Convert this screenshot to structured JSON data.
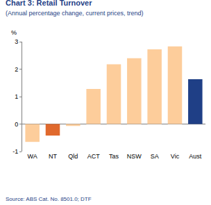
{
  "chart_data": {
    "type": "bar",
    "title": "Chart 3: Retail Turnover",
    "subtitle": "(Annual percentage change, current prices, trend)",
    "ylabel": "%",
    "source": "Source: ABS Cat. No. 8501.0; DTF",
    "categories": [
      "WA",
      "NT",
      "Qld",
      "ACT",
      "Tas",
      "NSW",
      "SA",
      "Vic",
      "Aust"
    ],
    "values": [
      -0.65,
      -0.42,
      -0.07,
      1.28,
      2.18,
      2.4,
      2.72,
      2.83,
      1.63
    ],
    "colors": [
      "#fdcd9b",
      "#e0692d",
      "#fdcd9b",
      "#fdcd9b",
      "#fdcd9b",
      "#fdcd9b",
      "#fdcd9b",
      "#fdcd9b",
      "#1f3f86"
    ],
    "ylim": [
      -1,
      3
    ],
    "yticks": [
      -1,
      0,
      1,
      2,
      3
    ],
    "grid": false
  }
}
